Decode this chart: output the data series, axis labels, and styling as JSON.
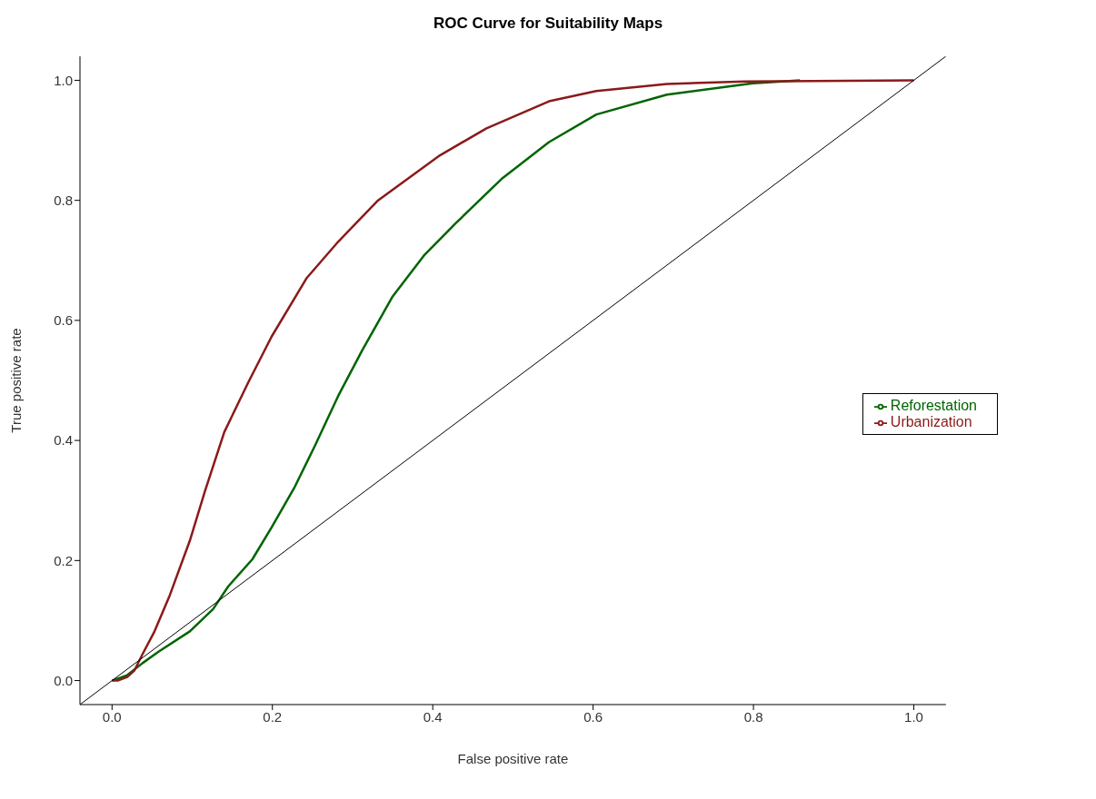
{
  "chart_data": {
    "type": "line",
    "title": "ROC Curve for Suitability Maps",
    "xlabel": "False positive rate",
    "ylabel": "True positive rate",
    "xlim": [
      -0.04,
      1.04
    ],
    "ylim": [
      -0.04,
      1.04
    ],
    "xticks": [
      {
        "value": 0,
        "label": "0.0"
      },
      {
        "value": 0.2,
        "label": "0.2"
      },
      {
        "value": 0.4,
        "label": "0.4"
      },
      {
        "value": 0.6,
        "label": "0.6"
      },
      {
        "value": 0.8,
        "label": "0.8"
      },
      {
        "value": 1,
        "label": "1.0"
      }
    ],
    "yticks": [
      {
        "value": 0,
        "label": "0.0"
      },
      {
        "value": 0.2,
        "label": "0.2"
      },
      {
        "value": 0.4,
        "label": "0.4"
      },
      {
        "value": 0.6,
        "label": "0.6"
      },
      {
        "value": 0.8,
        "label": "0.8"
      },
      {
        "value": 1,
        "label": "1.0"
      }
    ],
    "grid": false,
    "legend": "right",
    "marker": "none",
    "line_style": "solid",
    "series": [
      {
        "name": "Reforestation",
        "color": "#006400",
        "x": [
          0,
          0.019,
          0.038,
          0.058,
          0.097,
          0.126,
          0.145,
          0.175,
          0.199,
          0.228,
          0.253,
          0.282,
          0.312,
          0.35,
          0.389,
          0.428,
          0.487,
          0.545,
          0.604,
          0.692,
          0.799,
          0.858
        ],
        "values": [
          0,
          0.009,
          0.029,
          0.048,
          0.082,
          0.119,
          0.157,
          0.202,
          0.255,
          0.323,
          0.391,
          0.474,
          0.55,
          0.64,
          0.708,
          0.761,
          0.837,
          0.897,
          0.943,
          0.976,
          0.995,
          1.0
        ]
      },
      {
        "name": "Urbanization",
        "color": "#8b1a1a",
        "x": [
          0,
          0.007,
          0.019,
          0.028,
          0.038,
          0.053,
          0.072,
          0.097,
          0.116,
          0.14,
          0.17,
          0.199,
          0.243,
          0.282,
          0.331,
          0.409,
          0.467,
          0.545,
          0.604,
          0.692,
          0.789,
          1.0
        ],
        "values": [
          0,
          0,
          0.006,
          0.017,
          0.044,
          0.082,
          0.142,
          0.233,
          0.316,
          0.414,
          0.497,
          0.573,
          0.671,
          0.731,
          0.799,
          0.875,
          0.92,
          0.965,
          0.982,
          0.994,
          0.998,
          1.0
        ]
      },
      {
        "color": "#000000",
        "x": [
          -0.04,
          1.04
        ],
        "values": [
          -0.04,
          1.04
        ]
      }
    ]
  }
}
